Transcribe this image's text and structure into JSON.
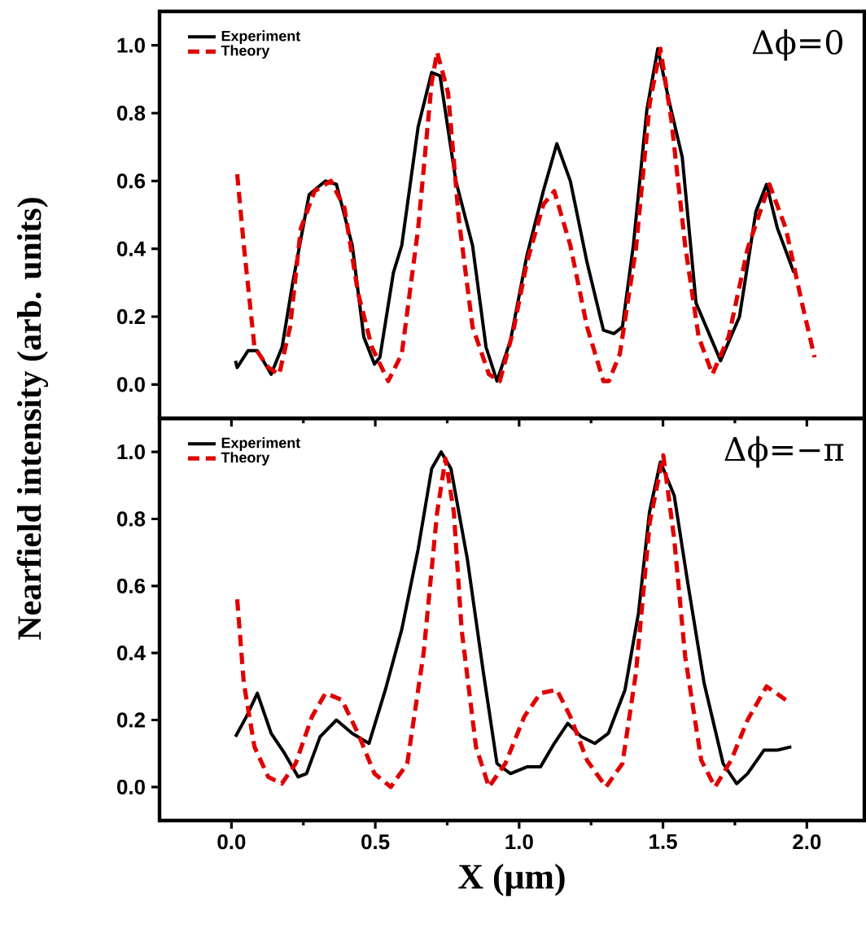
{
  "chart_data": [
    {
      "type": "line",
      "ylabel": "Nearfield intensity (arb. units)",
      "annotations": [
        "Δϕ=0"
      ],
      "legend": "top left",
      "tick_labels": "y",
      "xlim": [
        -0.25,
        2.2
      ],
      "xticks": [
        0,
        0.5,
        1,
        1.5,
        2
      ],
      "ylim": [
        -0.1,
        1.1
      ],
      "yticks": [
        {
          "value": 0,
          "label": "0.0"
        },
        {
          "value": 0.2,
          "label": "0.2"
        },
        {
          "value": 0.4,
          "label": "0.4"
        },
        {
          "value": 0.6,
          "label": "0.6"
        },
        {
          "value": 0.8,
          "label": "0.8"
        },
        {
          "value": 1,
          "label": "1.0"
        }
      ],
      "series": [
        {
          "name": "Experiment",
          "color": "#000000",
          "line_style": "solid",
          "x": [
            0.014,
            0.02,
            0.058,
            0.09,
            0.138,
            0.176,
            0.213,
            0.27,
            0.327,
            0.365,
            0.42,
            0.46,
            0.497,
            0.516,
            0.563,
            0.592,
            0.649,
            0.696,
            0.725,
            0.78,
            0.838,
            0.885,
            0.923,
            0.97,
            1.027,
            1.084,
            1.131,
            1.178,
            1.236,
            1.293,
            1.33,
            1.359,
            1.397,
            1.444,
            1.482,
            1.52,
            1.567,
            1.615,
            1.7,
            1.766,
            1.823,
            1.86,
            1.898,
            1.955
          ],
          "values": [
            0.07,
            0.05,
            0.1,
            0.1,
            0.03,
            0.11,
            0.3,
            0.56,
            0.6,
            0.59,
            0.41,
            0.14,
            0.06,
            0.08,
            0.33,
            0.41,
            0.76,
            0.92,
            0.91,
            0.6,
            0.41,
            0.11,
            0.01,
            0.13,
            0.38,
            0.57,
            0.71,
            0.6,
            0.36,
            0.16,
            0.15,
            0.17,
            0.41,
            0.81,
            0.99,
            0.84,
            0.67,
            0.24,
            0.07,
            0.2,
            0.51,
            0.59,
            0.46,
            0.33
          ]
        },
        {
          "name": "Theory",
          "color": "#e00000",
          "line_style": "dashed",
          "x": [
            0.02,
            0.043,
            0.08,
            0.128,
            0.166,
            0.204,
            0.241,
            0.289,
            0.346,
            0.393,
            0.44,
            0.488,
            0.545,
            0.592,
            0.649,
            0.696,
            0.715,
            0.753,
            0.79,
            0.838,
            0.895,
            0.933,
            0.98,
            1.027,
            1.084,
            1.122,
            1.178,
            1.236,
            1.293,
            1.312,
            1.35,
            1.406,
            1.454,
            1.491,
            1.529,
            1.577,
            1.624,
            1.672,
            1.728,
            1.794,
            1.87,
            1.927,
            1.983,
            2.027
          ],
          "values": [
            0.62,
            0.41,
            0.11,
            0.05,
            0.03,
            0.17,
            0.46,
            0.57,
            0.6,
            0.52,
            0.27,
            0.11,
            0.01,
            0.09,
            0.46,
            0.89,
            0.98,
            0.86,
            0.49,
            0.17,
            0.03,
            0.01,
            0.16,
            0.36,
            0.53,
            0.57,
            0.41,
            0.17,
            0.01,
            0.01,
            0.09,
            0.4,
            0.83,
            0.99,
            0.78,
            0.41,
            0.14,
            0.03,
            0.14,
            0.4,
            0.59,
            0.46,
            0.24,
            0.08
          ]
        }
      ]
    },
    {
      "type": "line",
      "xlabel": "X (μm)",
      "annotations": [
        "Δϕ=−π"
      ],
      "legend": "top left",
      "xlim": [
        -0.25,
        2.2
      ],
      "xticks": [
        {
          "value": 0,
          "label": "0.0"
        },
        {
          "value": 0.5,
          "label": "0.5"
        },
        {
          "value": 1,
          "label": "1.0"
        },
        {
          "value": 1.5,
          "label": "1.5"
        },
        {
          "value": 2,
          "label": "2.0"
        }
      ],
      "ylim": [
        -0.1,
        1.1
      ],
      "yticks": [
        {
          "value": 0,
          "label": "0.0"
        },
        {
          "value": 0.2,
          "label": "0.2"
        },
        {
          "value": 0.4,
          "label": "0.4"
        },
        {
          "value": 0.6,
          "label": "0.6"
        },
        {
          "value": 0.8,
          "label": "0.8"
        },
        {
          "value": 1,
          "label": "1.0"
        }
      ],
      "series": [
        {
          "name": "Experiment",
          "color": "#000000",
          "line_style": "solid",
          "x": [
            0.014,
            0.052,
            0.09,
            0.138,
            0.185,
            0.232,
            0.261,
            0.308,
            0.365,
            0.42,
            0.478,
            0.535,
            0.592,
            0.649,
            0.696,
            0.729,
            0.763,
            0.82,
            0.876,
            0.923,
            0.97,
            1.027,
            1.074,
            1.122,
            1.169,
            1.216,
            1.263,
            1.31,
            1.368,
            1.415,
            1.453,
            1.491,
            1.539,
            1.586,
            1.643,
            1.709,
            1.756,
            1.794,
            1.851,
            1.898,
            1.946
          ],
          "values": [
            0.15,
            0.21,
            0.28,
            0.16,
            0.1,
            0.03,
            0.04,
            0.15,
            0.2,
            0.16,
            0.13,
            0.29,
            0.47,
            0.71,
            0.95,
            1.0,
            0.95,
            0.68,
            0.34,
            0.07,
            0.04,
            0.06,
            0.06,
            0.13,
            0.19,
            0.15,
            0.13,
            0.16,
            0.29,
            0.52,
            0.82,
            0.97,
            0.87,
            0.61,
            0.31,
            0.07,
            0.01,
            0.04,
            0.11,
            0.11,
            0.12
          ]
        },
        {
          "name": "Theory",
          "color": "#e00000",
          "line_style": "dashed",
          "x": [
            0.02,
            0.043,
            0.08,
            0.128,
            0.175,
            0.223,
            0.28,
            0.327,
            0.384,
            0.44,
            0.497,
            0.554,
            0.611,
            0.668,
            0.715,
            0.744,
            0.773,
            0.8,
            0.85,
            0.895,
            0.952,
            1.018,
            1.074,
            1.131,
            1.178,
            1.236,
            1.302,
            1.359,
            1.406,
            1.454,
            1.501,
            1.539,
            1.577,
            1.633,
            1.681,
            1.737,
            1.794,
            1.86,
            1.927
          ],
          "values": [
            0.56,
            0.31,
            0.12,
            0.03,
            0.01,
            0.07,
            0.21,
            0.28,
            0.26,
            0.16,
            0.04,
            0.0,
            0.07,
            0.4,
            0.82,
            0.98,
            0.82,
            0.47,
            0.12,
            0.0,
            0.07,
            0.21,
            0.28,
            0.29,
            0.21,
            0.08,
            0.0,
            0.07,
            0.34,
            0.79,
            0.99,
            0.74,
            0.39,
            0.08,
            0.0,
            0.08,
            0.2,
            0.3,
            0.26
          ]
        }
      ]
    }
  ]
}
